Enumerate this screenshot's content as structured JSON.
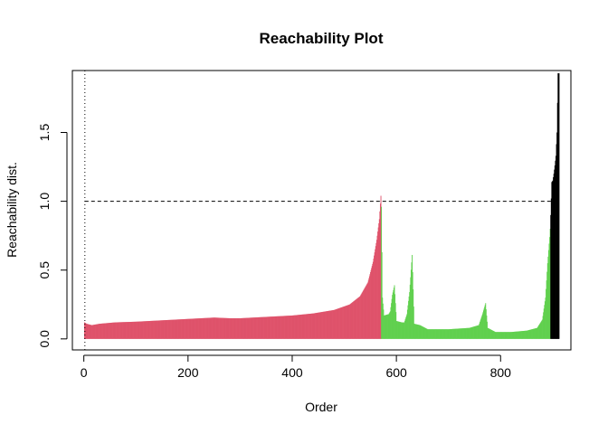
{
  "chart_data": {
    "type": "bar",
    "title": "Reachability Plot",
    "xlabel": "Order",
    "ylabel": "Reachability dist.",
    "xlim": [
      -22,
      935
    ],
    "ylim": [
      -0.08,
      1.95
    ],
    "x_ticks": [
      0,
      200,
      400,
      600,
      800
    ],
    "y_ticks": [
      0.0,
      0.5,
      1.0,
      1.5
    ],
    "x_tick_labels": [
      "0",
      "200",
      "400",
      "600",
      "800"
    ],
    "y_tick_labels": [
      "0.0",
      "0.5",
      "1.0",
      "1.5"
    ],
    "threshold": 1.0,
    "start_marker_x": 2,
    "grid": false,
    "legend": "none",
    "series": [
      {
        "name": "",
        "color": "#DF536B",
        "x_range": [
          1,
          570
        ],
        "points": [
          [
            1,
            0.12
          ],
          [
            5,
            0.11
          ],
          [
            15,
            0.1
          ],
          [
            30,
            0.11
          ],
          [
            60,
            0.12
          ],
          [
            100,
            0.125
          ],
          [
            150,
            0.135
          ],
          [
            200,
            0.145
          ],
          [
            250,
            0.155
          ],
          [
            280,
            0.15
          ],
          [
            300,
            0.15
          ],
          [
            350,
            0.16
          ],
          [
            400,
            0.17
          ],
          [
            440,
            0.185
          ],
          [
            480,
            0.21
          ],
          [
            510,
            0.25
          ],
          [
            530,
            0.31
          ],
          [
            545,
            0.41
          ],
          [
            555,
            0.56
          ],
          [
            562,
            0.72
          ],
          [
            567,
            0.87
          ],
          [
            570,
            1.04
          ]
        ]
      },
      {
        "name": "",
        "color": "#61D04F",
        "x_range": [
          571,
          895
        ],
        "points": [
          [
            571,
            0.96
          ],
          [
            573,
            0.3
          ],
          [
            576,
            0.17
          ],
          [
            585,
            0.18
          ],
          [
            588,
            0.2
          ],
          [
            592,
            0.32
          ],
          [
            596,
            0.39
          ],
          [
            600,
            0.13
          ],
          [
            610,
            0.12
          ],
          [
            615,
            0.12
          ],
          [
            620,
            0.18
          ],
          [
            625,
            0.34
          ],
          [
            630,
            0.61
          ],
          [
            634,
            0.11
          ],
          [
            645,
            0.1
          ],
          [
            660,
            0.07
          ],
          [
            700,
            0.07
          ],
          [
            740,
            0.08
          ],
          [
            758,
            0.1
          ],
          [
            765,
            0.18
          ],
          [
            771,
            0.26
          ],
          [
            775,
            0.08
          ],
          [
            790,
            0.05
          ],
          [
            820,
            0.05
          ],
          [
            850,
            0.06
          ],
          [
            870,
            0.08
          ],
          [
            880,
            0.14
          ],
          [
            886,
            0.3
          ],
          [
            890,
            0.55
          ],
          [
            894,
            0.74
          ],
          [
            895,
            0.8
          ]
        ]
      },
      {
        "name": "",
        "color": "#000000",
        "x_range": [
          896,
          912
        ],
        "points": [
          [
            896,
            0.9
          ],
          [
            898,
            1.14
          ],
          [
            900,
            1.15
          ],
          [
            902,
            1.2
          ],
          [
            904,
            1.26
          ],
          [
            906,
            1.33
          ],
          [
            908,
            1.5
          ],
          [
            910,
            1.93
          ],
          [
            911,
            1.93
          ]
        ]
      }
    ]
  }
}
